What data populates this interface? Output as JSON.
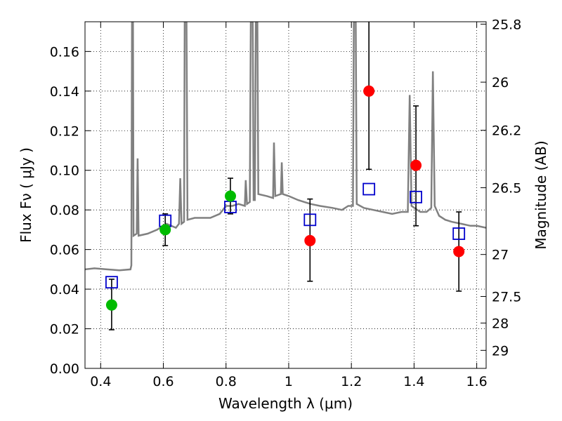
{
  "chart_data": {
    "type": "scatter",
    "xlabel": "Wavelength  λ (μm)",
    "ylabel": "Flux  Fν  ( μJy )",
    "ylabel_right": "Magnitude (AB)",
    "xlim": [
      0.35,
      1.63
    ],
    "ylim": [
      0.0,
      0.175
    ],
    "x_ticks": [
      0.4,
      0.6,
      0.8,
      1.0,
      1.2,
      1.4,
      1.6
    ],
    "x_tick_labels": [
      "0.4",
      "0.6",
      "0.8",
      "1",
      "1.2",
      "1.4",
      "1.6"
    ],
    "y_ticks": [
      0.0,
      0.02,
      0.04,
      0.06,
      0.08,
      0.1,
      0.12,
      0.14,
      0.16
    ],
    "y_tick_labels": [
      "0.00",
      "0.02",
      "0.04",
      "0.06",
      "0.08",
      "0.10",
      "0.12",
      "0.14",
      "0.16"
    ],
    "right_ticks": [
      {
        "mag_label": "25.8",
        "flux": 0.1738
      },
      {
        "mag_label": "26",
        "flux": 0.1445
      },
      {
        "mag_label": "26.2",
        "flux": 0.1202
      },
      {
        "mag_label": "26.5",
        "flux": 0.0912
      },
      {
        "mag_label": "27",
        "flux": 0.0575
      },
      {
        "mag_label": "27.5",
        "flux": 0.0363
      },
      {
        "mag_label": "28",
        "flux": 0.0229
      },
      {
        "mag_label": "29",
        "flux": 0.0091
      }
    ],
    "grid": true,
    "colors": {
      "spectrum": "#808080",
      "detections": "#00bb00",
      "non_detections": "#ff0000",
      "model_boxes": "#0000cc",
      "error_bars": "#000000"
    },
    "series": [
      {
        "marker": "circle",
        "color": "#00bb00",
        "points": [
          {
            "x": 0.435,
            "y": 0.032,
            "err_lo": 0.0195,
            "err_hi": 0.045
          },
          {
            "x": 0.606,
            "y": 0.07,
            "err_lo": 0.062,
            "err_hi": 0.078
          },
          {
            "x": 0.814,
            "y": 0.087,
            "err_lo": 0.078,
            "err_hi": 0.096
          }
        ]
      },
      {
        "marker": "circle",
        "color": "#ff0000",
        "points": [
          {
            "x": 1.068,
            "y": 0.0645,
            "err_lo": 0.044,
            "err_hi": 0.0855
          },
          {
            "x": 1.256,
            "y": 0.14,
            "err_lo": 0.1005,
            "err_hi": 0.175
          },
          {
            "x": 1.406,
            "y": 0.1025,
            "err_lo": 0.072,
            "err_hi": 0.1325
          },
          {
            "x": 1.543,
            "y": 0.059,
            "err_lo": 0.039,
            "err_hi": 0.079
          }
        ]
      },
      {
        "marker": "square",
        "color": "#0000cc",
        "points": [
          {
            "x": 0.435,
            "y": 0.0435
          },
          {
            "x": 0.606,
            "y": 0.0745
          },
          {
            "x": 0.814,
            "y": 0.0815
          },
          {
            "x": 1.068,
            "y": 0.075
          },
          {
            "x": 1.256,
            "y": 0.0905
          },
          {
            "x": 1.406,
            "y": 0.0865
          },
          {
            "x": 1.543,
            "y": 0.068
          }
        ]
      },
      {
        "marker": "line",
        "color": "#808080",
        "points": [
          [
            0.35,
            0.05
          ],
          [
            0.38,
            0.0505
          ],
          [
            0.42,
            0.05
          ],
          [
            0.46,
            0.0495
          ],
          [
            0.495,
            0.05
          ],
          [
            0.498,
            0.052
          ],
          [
            0.5,
            0.175
          ],
          [
            0.503,
            0.175
          ],
          [
            0.505,
            0.067
          ],
          [
            0.515,
            0.068
          ],
          [
            0.518,
            0.106
          ],
          [
            0.521,
            0.067
          ],
          [
            0.55,
            0.068
          ],
          [
            0.58,
            0.07
          ],
          [
            0.61,
            0.073
          ],
          [
            0.64,
            0.071
          ],
          [
            0.65,
            0.073
          ],
          [
            0.654,
            0.096
          ],
          [
            0.658,
            0.073
          ],
          [
            0.666,
            0.074
          ],
          [
            0.668,
            0.175
          ],
          [
            0.674,
            0.175
          ],
          [
            0.677,
            0.075
          ],
          [
            0.7,
            0.076
          ],
          [
            0.75,
            0.076
          ],
          [
            0.78,
            0.078
          ],
          [
            0.8,
            0.082
          ],
          [
            0.82,
            0.082
          ],
          [
            0.84,
            0.083
          ],
          [
            0.86,
            0.082
          ],
          [
            0.863,
            0.095
          ],
          [
            0.867,
            0.083
          ],
          [
            0.876,
            0.084
          ],
          [
            0.879,
            0.175
          ],
          [
            0.885,
            0.175
          ],
          [
            0.888,
            0.085
          ],
          [
            0.892,
            0.085
          ],
          [
            0.895,
            0.175
          ],
          [
            0.9,
            0.175
          ],
          [
            0.903,
            0.088
          ],
          [
            0.93,
            0.087
          ],
          [
            0.95,
            0.086
          ],
          [
            0.953,
            0.114
          ],
          [
            0.957,
            0.087
          ],
          [
            0.975,
            0.088
          ],
          [
            0.978,
            0.104
          ],
          [
            0.981,
            0.088
          ],
          [
            1.0,
            0.087
          ],
          [
            1.03,
            0.085
          ],
          [
            1.05,
            0.084
          ],
          [
            1.07,
            0.083
          ],
          [
            1.1,
            0.082
          ],
          [
            1.14,
            0.081
          ],
          [
            1.17,
            0.08
          ],
          [
            1.19,
            0.082
          ],
          [
            1.205,
            0.082
          ],
          [
            1.208,
            0.175
          ],
          [
            1.214,
            0.175
          ],
          [
            1.217,
            0.083
          ],
          [
            1.24,
            0.081
          ],
          [
            1.27,
            0.08
          ],
          [
            1.3,
            0.079
          ],
          [
            1.33,
            0.078
          ],
          [
            1.36,
            0.079
          ],
          [
            1.38,
            0.079
          ],
          [
            1.386,
            0.138
          ],
          [
            1.392,
            0.082
          ],
          [
            1.42,
            0.079
          ],
          [
            1.44,
            0.079
          ],
          [
            1.455,
            0.081
          ],
          [
            1.46,
            0.15
          ],
          [
            1.466,
            0.082
          ],
          [
            1.48,
            0.077
          ],
          [
            1.5,
            0.075
          ],
          [
            1.52,
            0.074
          ],
          [
            1.55,
            0.073
          ],
          [
            1.58,
            0.072
          ],
          [
            1.6,
            0.072
          ],
          [
            1.63,
            0.071
          ]
        ]
      }
    ]
  }
}
